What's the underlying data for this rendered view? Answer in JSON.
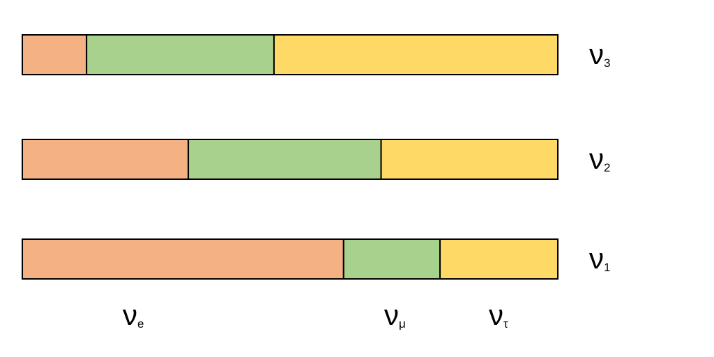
{
  "chart_data": {
    "type": "stacked-bar-horizontal",
    "categories": [
      "ν3",
      "ν2",
      "ν1"
    ],
    "series": [
      {
        "name": "νe",
        "color": "#f4b183",
        "values": [
          12,
          31,
          60
        ]
      },
      {
        "name": "νμ",
        "color": "#a9d18e",
        "values": [
          35,
          36,
          18
        ]
      },
      {
        "name": "ντ",
        "color": "#ffd966",
        "values": [
          53,
          33,
          22
        ]
      }
    ]
  }
}
